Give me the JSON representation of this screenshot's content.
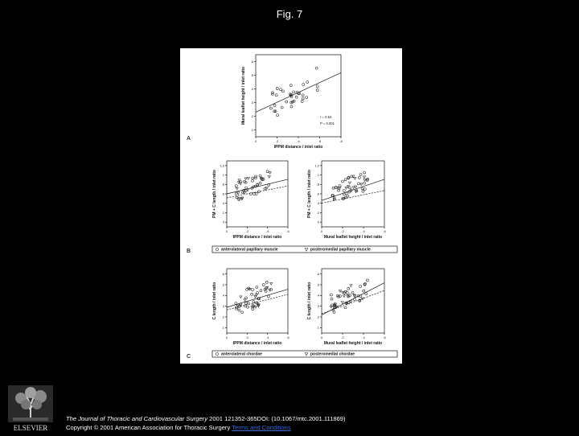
{
  "title": "Fig. 7",
  "citation": {
    "journal": "The Journal of Thoracic and Cardiovascular Surgery",
    "details": " 2001 121352-365DOI: (10.1067/mtc.2001.111869)",
    "copyright": "Copyright © 2001 American Association for Thoracic Surgery ",
    "terms_link": "Terms and Conditions"
  },
  "logo": {
    "text": "ELSEVIER",
    "icon": "elsevier-tree-icon"
  },
  "figure": {
    "panelA": {
      "letter": "A",
      "ylabel": "Mural leaflet height / inlet ratio",
      "xlabel": "IPPM distance / inlet ratio",
      "yticks": [
        ".1",
        ".2",
        ".3",
        ".4",
        ".5",
        ".6"
      ],
      "xticks": [
        "0",
        ".2",
        ".4",
        ".6",
        ".8"
      ],
      "stat_r": "r = 0.53",
      "stat_p": "P = 0.001"
    },
    "panelB": {
      "letter": "B",
      "ylabel": "PM + C length / inlet ratio",
      "xlabel_left": "IPPM distance / inlet ratio",
      "xlabel_right": "Mural leaflet height / inlet ratio",
      "yticks": [
        "0",
        ".2",
        ".4",
        ".6",
        ".8",
        "1",
        "1.2"
      ],
      "xticks_left": [
        "0",
        ".2",
        ".4",
        ".6"
      ],
      "xticks_right": [
        "0",
        ".2",
        ".4",
        ".6"
      ],
      "legend": [
        "anterolateral papillary muscle",
        "posteromedial papillary muscle"
      ]
    },
    "panelC": {
      "letter": "C",
      "ylabel": "C length / inlet ratio",
      "xlabel_left": "IPPM distance / inlet ratio",
      "xlabel_right": "Mural leaflet height / inlet ratio",
      "yticks": [
        ".1",
        ".2",
        ".3",
        ".4",
        ".5",
        ".6"
      ],
      "xticks_left": [
        "0",
        ".2",
        ".4",
        ".6"
      ],
      "xticks_right": [
        "0",
        ".2",
        ".4",
        ".6"
      ],
      "legend": [
        "anterolateral chordae",
        "posteromedial chordae"
      ]
    }
  }
}
